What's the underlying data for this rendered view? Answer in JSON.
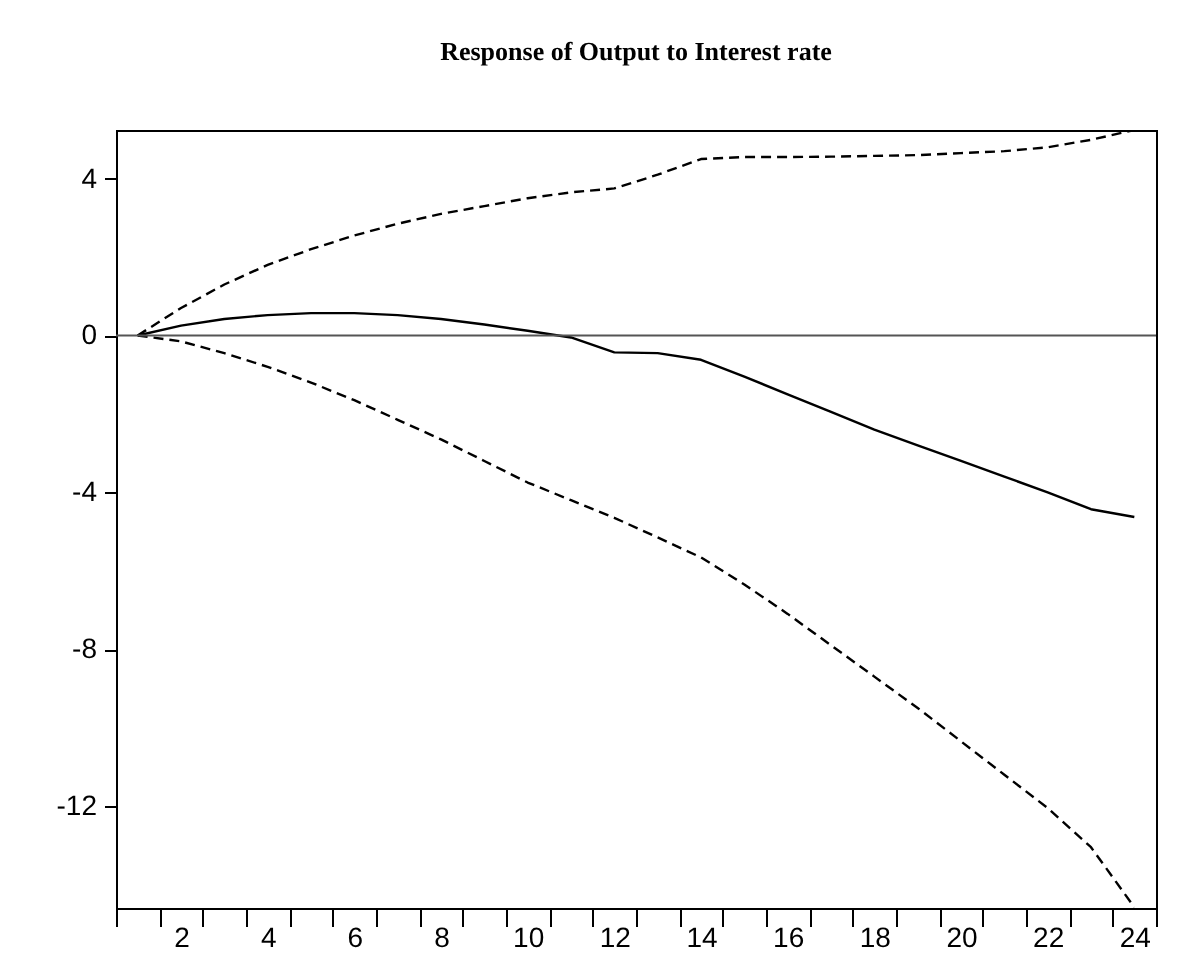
{
  "chart_data": {
    "type": "line",
    "title": "Response of Output to Interest rate",
    "x": [
      1,
      2,
      3,
      4,
      5,
      6,
      7,
      8,
      9,
      10,
      11,
      12,
      13,
      14,
      15,
      16,
      17,
      18,
      19,
      20,
      21,
      22,
      23,
      24
    ],
    "series": [
      {
        "color": "#000000",
        "line_style": "solid",
        "values": [
          0,
          0.25,
          0.42,
          0.52,
          0.57,
          0.57,
          0.52,
          0.42,
          0.28,
          0.12,
          -0.05,
          -0.43,
          -0.45,
          -0.62,
          -1.05,
          -1.5,
          -1.95,
          -2.4,
          -2.8,
          -3.2,
          -3.6,
          -4.0,
          -4.43,
          -4.63
        ]
      },
      {
        "color": "#000000",
        "line_style": "dashed",
        "values": [
          0,
          0.7,
          1.3,
          1.8,
          2.2,
          2.55,
          2.85,
          3.1,
          3.3,
          3.5,
          3.65,
          3.75,
          4.1,
          4.5,
          4.55,
          4.55,
          4.56,
          4.58,
          4.6,
          4.65,
          4.7,
          4.8,
          4.99,
          5.24
        ]
      },
      {
        "color": "#000000",
        "line_style": "dashed",
        "values": [
          0,
          -0.15,
          -0.45,
          -0.8,
          -1.2,
          -1.65,
          -2.15,
          -2.65,
          -3.2,
          -3.75,
          -4.2,
          -4.65,
          -5.15,
          -5.66,
          -6.35,
          -7.1,
          -7.9,
          -8.7,
          -9.5,
          -10.35,
          -11.2,
          -12.05,
          -13.05,
          -14.58
        ]
      }
    ],
    "xlim": [
      0.5,
      24.5
    ],
    "xticks": [
      {
        "value": 0.5,
        "label": null
      },
      {
        "value": 1.5,
        "label": null
      },
      2,
      {
        "value": 2.5,
        "label": null
      },
      {
        "value": 3.5,
        "label": null
      },
      4,
      {
        "value": 4.5,
        "label": null
      },
      {
        "value": 5.5,
        "label": null
      },
      6,
      {
        "value": 6.5,
        "label": null
      },
      {
        "value": 7.5,
        "label": null
      },
      8,
      {
        "value": 8.5,
        "label": null
      },
      {
        "value": 9.5,
        "label": null
      },
      10,
      {
        "value": 10.5,
        "label": null
      },
      {
        "value": 11.5,
        "label": null
      },
      12,
      {
        "value": 12.5,
        "label": null
      },
      {
        "value": 13.5,
        "label": null
      },
      14,
      {
        "value": 14.5,
        "label": null
      },
      {
        "value": 15.5,
        "label": null
      },
      16,
      {
        "value": 16.5,
        "label": null
      },
      {
        "value": 17.5,
        "label": null
      },
      18,
      {
        "value": 18.5,
        "label": null
      },
      {
        "value": 19.5,
        "label": null
      },
      20,
      {
        "value": 20.5,
        "label": null
      },
      {
        "value": 21.5,
        "label": null
      },
      22,
      {
        "value": 22.5,
        "label": null
      },
      {
        "value": 23.5,
        "label": null
      },
      24,
      {
        "value": 24.5,
        "label": null
      }
    ],
    "ylim": [
      -14.6,
      5.24
    ],
    "yticks": [
      4,
      0,
      -4,
      -8,
      -12
    ],
    "ref_lines": [
      {
        "axis": "y",
        "value": 0,
        "color": "#555555"
      }
    ],
    "grid": false,
    "marker": "none"
  }
}
